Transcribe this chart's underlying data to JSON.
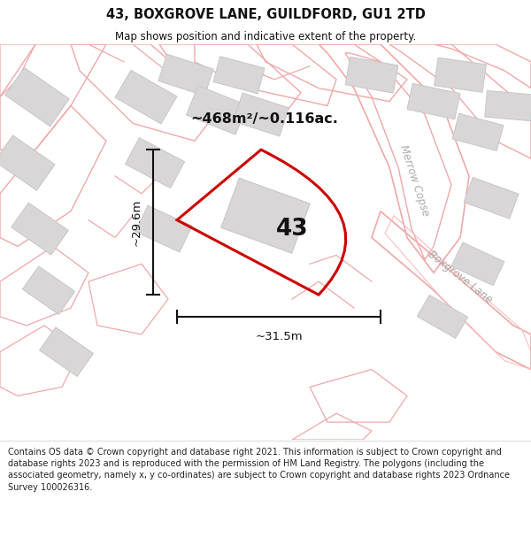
{
  "title_line1": "43, BOXGROVE LANE, GUILDFORD, GU1 2TD",
  "title_line2": "Map shows position and indicative extent of the property.",
  "area_text": "~468m²/~0.116ac.",
  "label_43": "43",
  "label_height": "~29.6m",
  "label_width": "~31.5m",
  "road_label_merrow": "Merrow Copse",
  "road_label_boxgrove": "Boxgrove Lane",
  "footer_text": "Contains OS data © Crown copyright and database right 2021. This information is subject to Crown copyright and database rights 2023 and is reproduced with the permission of HM Land Registry. The polygons (including the associated geometry, namely x, y co-ordinates) are subject to Crown copyright and database rights 2023 Ordnance Survey 100026316.",
  "map_bg": "#f5f3f3",
  "road_stroke": "#f0a8a8",
  "road_stroke_light": "#f5c0c0",
  "plot_stroke": "#cc0000",
  "building_fill": "#d8d6d6",
  "building_stroke": "#c8c6c6",
  "dim_color": "#111111",
  "text_color": "#111111",
  "road_label_color": "#aaaaaa",
  "footer_bg": "#ffffff",
  "header_bg": "#ffffff"
}
